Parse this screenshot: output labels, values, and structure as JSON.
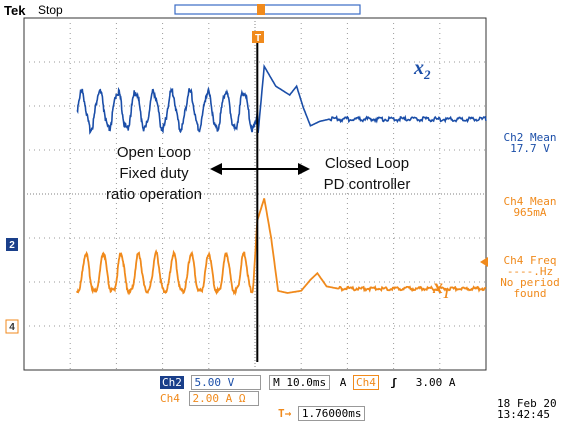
{
  "header": {
    "brand": "Tek",
    "state": "Stop"
  },
  "annotations": {
    "left": [
      "Open Loop",
      "Fixed duty",
      "ratio operation"
    ],
    "right": [
      "Closed Loop",
      "PD controller"
    ],
    "trigger_marker": "T",
    "ch2_marker": "2",
    "ch4_marker": "4"
  },
  "measurements": {
    "ch2_mean": {
      "label": "Ch2 Mean",
      "value": "17.7 V"
    },
    "ch4_mean": {
      "label": "Ch4 Mean",
      "value": "965mA"
    },
    "ch4_freq": {
      "label": "Ch4 Freq",
      "value": "----.Hz",
      "note1": "No period",
      "note2": "found"
    }
  },
  "settings": {
    "ch2_tag": "Ch2",
    "ch2_scale": "5.00 V",
    "timebase": "M 10.0ms",
    "trig_mode": "A",
    "trig_ch": "Ch4",
    "trig_slope": "ʃ",
    "trig_level": "3.00 A",
    "ch4_tag": "Ch4",
    "ch4_scale": "2.00 A Ω",
    "trig_pos": "1.76000ms"
  },
  "datetime": {
    "date": "18 Feb 20",
    "time": "13:42:45"
  },
  "colors": {
    "ch2": "#1b4ea8",
    "ch4": "#f08a1c",
    "grid": "#9a9a9a",
    "cursor": "#000000"
  },
  "chart_data": {
    "type": "line",
    "grid": true,
    "x_divisions": 10,
    "y_divisions": 8,
    "cursor_x": 5.05,
    "series": [
      {
        "name": "x2",
        "open_loop": {
          "x_end": 5.05,
          "cycles": 10,
          "center_div": 2.1,
          "peak_to_peak_div": 0.85
        },
        "transient": [
          [
            5.05,
            2.8
          ],
          [
            5.2,
            1.1
          ],
          [
            5.45,
            1.55
          ],
          [
            5.75,
            1.75
          ],
          [
            5.9,
            1.55
          ],
          [
            6.05,
            2.05
          ],
          [
            6.2,
            2.45
          ],
          [
            6.4,
            2.35
          ],
          [
            6.6,
            2.3
          ],
          [
            10,
            2.3
          ]
        ],
        "settled_div": 2.3
      },
      {
        "name": "x1",
        "open_loop": {
          "x_end": 4.95,
          "cycles": 10,
          "base_div": 6.2,
          "peak_div": 5.35
        },
        "transient": [
          [
            4.95,
            6.3
          ],
          [
            5.05,
            4.6
          ],
          [
            5.2,
            4.1
          ],
          [
            5.35,
            5.0
          ],
          [
            5.5,
            6.2
          ],
          [
            5.7,
            6.25
          ],
          [
            6.0,
            6.2
          ],
          [
            6.2,
            5.95
          ],
          [
            6.35,
            5.8
          ],
          [
            6.55,
            6.1
          ],
          [
            6.8,
            6.15
          ],
          [
            10,
            6.15
          ]
        ],
        "settled_div": 6.15
      }
    ]
  }
}
